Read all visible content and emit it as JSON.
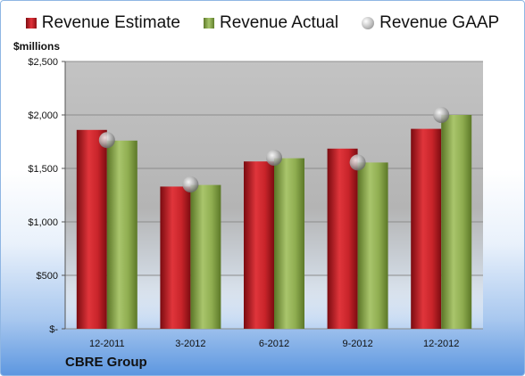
{
  "legend": {
    "estimate": "Revenue Estimate",
    "actual": "Revenue Actual",
    "gaap": "Revenue GAAP"
  },
  "unit_label": "$millions",
  "company": "CBRE Group",
  "colors": {
    "estimate": "#d42a30",
    "actual": "#9bbb59",
    "gaap": "#c0c0c0",
    "plot_bg": "#bdbdbd"
  },
  "chart_data": {
    "type": "bar",
    "categories": [
      "12-2011",
      "3-2012",
      "6-2012",
      "9-2012",
      "12-2012"
    ],
    "series": [
      {
        "name": "Revenue Estimate",
        "values": [
          1860,
          1330,
          1565,
          1685,
          1870
        ]
      },
      {
        "name": "Revenue Actual",
        "values": [
          1760,
          1345,
          1595,
          1555,
          2000
        ]
      },
      {
        "name": "Revenue GAAP",
        "values": [
          1765,
          1350,
          1600,
          1555,
          2000
        ]
      }
    ],
    "ylim": [
      0,
      2500
    ],
    "yticks": [
      0,
      500,
      1000,
      1500,
      2000,
      2500
    ],
    "ytick_labels": [
      "$-",
      "$500",
      "$1,000",
      "$1,500",
      "$2,000",
      "$2,500"
    ],
    "grid": true,
    "legend_position": "top"
  }
}
